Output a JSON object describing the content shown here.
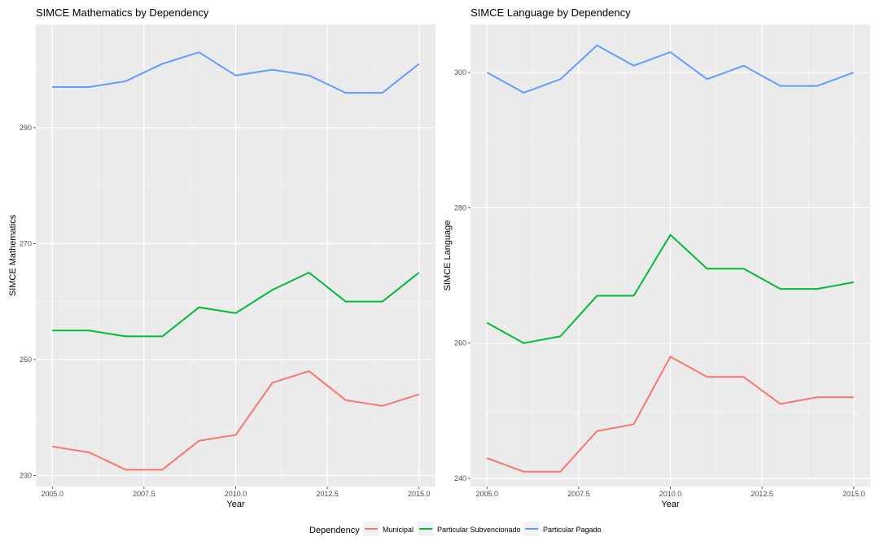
{
  "chart_data": [
    {
      "type": "line",
      "title": "SIMCE Mathematics by Dependency",
      "xlabel": "Year",
      "ylabel": "SIMCE Mathematics",
      "xlim": [
        2004.55,
        2015.45
      ],
      "ylim": [
        228.1,
        307.8
      ],
      "x_ticks": [
        2005,
        2007.5,
        2010,
        2012.5,
        2015
      ],
      "x_tick_labels": [
        "2005.0",
        "2007.5",
        "2010.0",
        "2012.5",
        "2015.0"
      ],
      "y_ticks": [
        230,
        250,
        270,
        290
      ],
      "y_tick_labels": [
        "230",
        "250",
        "270",
        "290"
      ],
      "grid": true,
      "x": [
        2005,
        2006,
        2007,
        2008,
        2009,
        2010,
        2011,
        2012,
        2013,
        2014,
        2015
      ],
      "series": [
        {
          "name": "Municipal",
          "color": "#F8766D",
          "values": [
            235,
            234,
            231,
            231,
            236,
            237,
            246,
            248,
            243,
            242,
            244
          ]
        },
        {
          "name": "Particular Subvencionado",
          "color": "#00BA38",
          "values": [
            255,
            255,
            254,
            254,
            259,
            258,
            262,
            265,
            260,
            260,
            265
          ]
        },
        {
          "name": "Particular Pagado",
          "color": "#619CFF",
          "values": [
            297,
            297,
            298,
            301,
            303,
            299,
            300,
            299,
            296,
            296,
            301
          ]
        }
      ]
    },
    {
      "type": "line",
      "title": "SIMCE Language by Dependency",
      "xlabel": "Year",
      "ylabel": "SIMCE Language",
      "xlim": [
        2004.55,
        2015.45
      ],
      "ylim": [
        238.8,
        307.1
      ],
      "x_ticks": [
        2005,
        2007.5,
        2010,
        2012.5,
        2015
      ],
      "x_tick_labels": [
        "2005.0",
        "2007.5",
        "2010.0",
        "2012.5",
        "2015.0"
      ],
      "y_ticks": [
        240,
        260,
        280,
        300
      ],
      "y_tick_labels": [
        "240",
        "260",
        "280",
        "300"
      ],
      "grid": true,
      "x": [
        2005,
        2006,
        2007,
        2008,
        2009,
        2010,
        2011,
        2012,
        2013,
        2014,
        2015
      ],
      "series": [
        {
          "name": "Municipal",
          "color": "#F8766D",
          "values": [
            243,
            241,
            241,
            247,
            248,
            258,
            255,
            255,
            251,
            252,
            252
          ]
        },
        {
          "name": "Particular Subvencionado",
          "color": "#00BA38",
          "values": [
            263,
            260,
            261,
            267,
            267,
            276,
            271,
            271,
            268,
            268,
            269
          ]
        },
        {
          "name": "Particular Pagado",
          "color": "#619CFF",
          "values": [
            300,
            297,
            299,
            304,
            301,
            303,
            299,
            301,
            298,
            298,
            300
          ]
        }
      ]
    }
  ],
  "legend": {
    "title": "Dependency",
    "placement": "bottom",
    "entries": [
      {
        "label": "Municipal",
        "color": "#F8766D"
      },
      {
        "label": "Particular Subvencionado",
        "color": "#00BA38"
      },
      {
        "label": "Particular Pagado",
        "color": "#619CFF"
      }
    ]
  }
}
